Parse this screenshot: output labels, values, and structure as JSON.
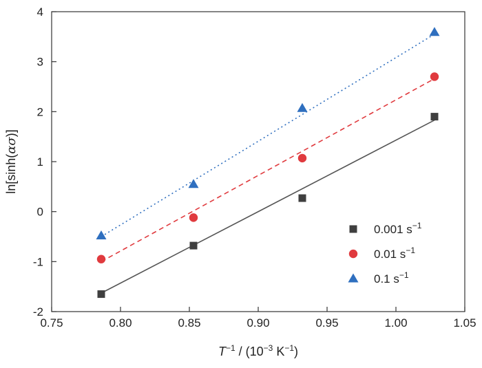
{
  "chart_data": {
    "type": "scatter",
    "xlabel": {
      "base": "T",
      "sup": "−1",
      "mid": " / (10",
      "sup2": "−3",
      "mid2": " K",
      "sup3": "−1",
      "end": ")"
    },
    "ylabel": {
      "pre": "ln[sinh(",
      "sym": "ασ",
      "post": ")]"
    },
    "xlim": [
      0.75,
      1.05
    ],
    "ylim": [
      -2,
      4
    ],
    "x_ticks": [
      "0.75",
      "0.80",
      "0.85",
      "0.90",
      "0.95",
      "1.00",
      "1.05"
    ],
    "y_ticks": [
      "-2",
      "-1",
      "0",
      "1",
      "2",
      "3",
      "4"
    ],
    "grid": false,
    "legend_position": "bottom-right",
    "series": [
      {
        "name": "0.001 s",
        "name_sup": "−1",
        "marker": "square",
        "line_style": "solid",
        "color": "#3f3f3f",
        "line_color": "#555555",
        "x": [
          0.786,
          0.853,
          0.932,
          1.028
        ],
        "y": [
          -1.65,
          -0.68,
          0.27,
          1.9
        ],
        "fit": [
          [
            0.786,
            -1.63
          ],
          [
            1.028,
            1.83
          ]
        ]
      },
      {
        "name": "0.01 s",
        "name_sup": "−1",
        "marker": "circle",
        "line_style": "dashed",
        "color": "#e03a3e",
        "line_color": "#e03a3e",
        "x": [
          0.786,
          0.853,
          0.932,
          1.028
        ],
        "y": [
          -0.95,
          -0.12,
          1.07,
          2.7
        ],
        "fit": [
          [
            0.786,
            -1.0
          ],
          [
            1.028,
            2.66
          ]
        ]
      },
      {
        "name": "0.1 s",
        "name_sup": "−1",
        "marker": "triangle",
        "line_style": "dotted",
        "color": "#2f6fbf",
        "line_color": "#2f6fbf",
        "x": [
          0.786,
          0.853,
          0.932,
          1.028
        ],
        "y": [
          -0.48,
          0.55,
          2.07,
          3.59
        ],
        "fit": [
          [
            0.786,
            -0.5
          ],
          [
            1.028,
            3.55
          ]
        ]
      }
    ]
  }
}
